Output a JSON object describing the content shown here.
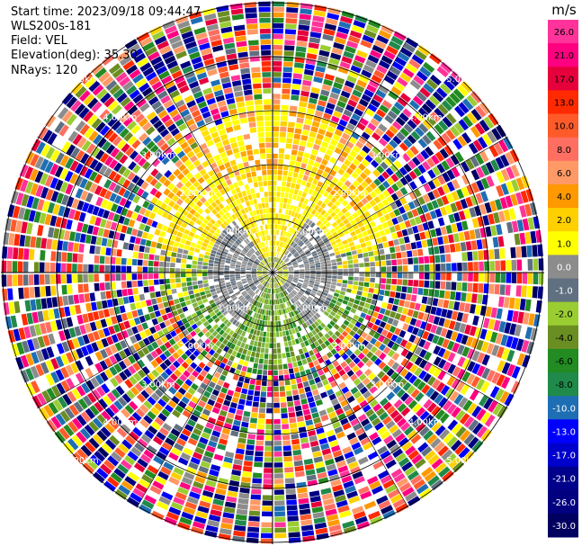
{
  "header": {
    "start_time": "Start time: 2023/09/18 09:44:47",
    "instrument": "WLS200s-181",
    "field": "Field: VEL",
    "elevation": "Elevation(deg): 35.30",
    "nrays": "NRays: 120"
  },
  "chart_data": {
    "type": "heatmap",
    "projection": "polar-ppi",
    "unit": "m/s",
    "n_rays": 120,
    "range_rings_km": [
      1.0,
      2.0,
      3.0,
      4.0,
      5.0
    ],
    "ring_labels": [
      "1.00km",
      "2.00km",
      "3.00km",
      "4.00km",
      "5.00km"
    ],
    "colorbar": {
      "unit_label": "m/s",
      "tick_labels": [
        "26.0",
        "21.0",
        "17.0",
        "13.0",
        "10.0",
        "8.0",
        "6.0",
        "4.0",
        "2.0",
        "1.0",
        "0.0",
        "-1.0",
        "-2.0",
        "-4.0",
        "-6.0",
        "-8.0",
        "-10.0",
        "-13.0",
        "-17.0",
        "-21.0",
        "-26.0",
        "-30.0"
      ],
      "colors": [
        "#ff3399",
        "#ff0080",
        "#e6003c",
        "#ff2a00",
        "#ff5a2a",
        "#ff6f61",
        "#ff9966",
        "#ff9900",
        "#ffd000",
        "#ffff00",
        "#8c8c8c",
        "#607080",
        "#9acd32",
        "#6b8e23",
        "#228b22",
        "#1f8a4a",
        "#1e6eb4",
        "#0000ff",
        "#0000cd",
        "#00008b",
        "#000080",
        "#000060"
      ]
    },
    "velocity_pattern": {
      "inner_positive_near_field": "yellow 1-4 m/s, north/upper side",
      "inner_negative_near_field": "green -1 to -6 m/s, south/lower side",
      "center_zero": "grey ~0 m/s",
      "outer_noise": "random colors beyond ~3 km"
    }
  }
}
